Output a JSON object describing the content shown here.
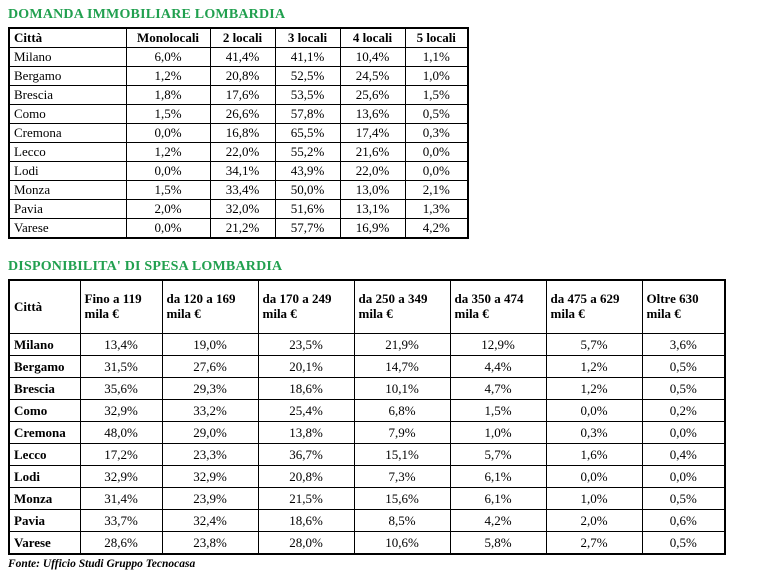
{
  "accent_color": "#21a04f",
  "source_note": "Fonte: Ufficio Studi Gruppo Tecnocasa",
  "demand_table": {
    "title": "DOMANDA IMMOBILIARE LOMBARDIA",
    "columns": [
      "Città",
      "Monolocali",
      "2 locali",
      "3 locali",
      "4 locali",
      "5 locali"
    ],
    "rows": [
      {
        "city": "Milano",
        "values": [
          "6,0%",
          "41,4%",
          "41,1%",
          "10,4%",
          "1,1%"
        ]
      },
      {
        "city": "Bergamo",
        "values": [
          "1,2%",
          "20,8%",
          "52,5%",
          "24,5%",
          "1,0%"
        ]
      },
      {
        "city": "Brescia",
        "values": [
          "1,8%",
          "17,6%",
          "53,5%",
          "25,6%",
          "1,5%"
        ]
      },
      {
        "city": "Como",
        "values": [
          "1,5%",
          "26,6%",
          "57,8%",
          "13,6%",
          "0,5%"
        ]
      },
      {
        "city": "Cremona",
        "values": [
          "0,0%",
          "16,8%",
          "65,5%",
          "17,4%",
          "0,3%"
        ]
      },
      {
        "city": "Lecco",
        "values": [
          "1,2%",
          "22,0%",
          "55,2%",
          "21,6%",
          "0,0%"
        ]
      },
      {
        "city": "Lodi",
        "values": [
          "0,0%",
          "34,1%",
          "43,9%",
          "22,0%",
          "0,0%"
        ]
      },
      {
        "city": "Monza",
        "values": [
          "1,5%",
          "33,4%",
          "50,0%",
          "13,0%",
          "2,1%"
        ]
      },
      {
        "city": "Pavia",
        "values": [
          "2,0%",
          "32,0%",
          "51,6%",
          "13,1%",
          "1,3%"
        ]
      },
      {
        "city": "Varese",
        "values": [
          "0,0%",
          "21,2%",
          "57,7%",
          "16,9%",
          "4,2%"
        ]
      }
    ]
  },
  "budget_table": {
    "title": "DISPONIBILITA' DI SPESA LOMBARDIA",
    "columns": [
      "Città",
      "Fino a 119 mila €",
      "da 120 a 169 mila €",
      "da 170 a 249 mila €",
      "da 250 a 349 mila €",
      "da 350 a 474 mila €",
      "da 475 a 629 mila €",
      "Oltre 630 mila €"
    ],
    "rows": [
      {
        "city": "Milano",
        "values": [
          "13,4%",
          "19,0%",
          "23,5%",
          "21,9%",
          "12,9%",
          "5,7%",
          "3,6%"
        ]
      },
      {
        "city": "Bergamo",
        "values": [
          "31,5%",
          "27,6%",
          "20,1%",
          "14,7%",
          "4,4%",
          "1,2%",
          "0,5%"
        ]
      },
      {
        "city": "Brescia",
        "values": [
          "35,6%",
          "29,3%",
          "18,6%",
          "10,1%",
          "4,7%",
          "1,2%",
          "0,5%"
        ]
      },
      {
        "city": "Como",
        "values": [
          "32,9%",
          "33,2%",
          "25,4%",
          "6,8%",
          "1,5%",
          "0,0%",
          "0,2%"
        ]
      },
      {
        "city": "Cremona",
        "values": [
          "48,0%",
          "29,0%",
          "13,8%",
          "7,9%",
          "1,0%",
          "0,3%",
          "0,0%"
        ]
      },
      {
        "city": "Lecco",
        "values": [
          "17,2%",
          "23,3%",
          "36,7%",
          "15,1%",
          "5,7%",
          "1,6%",
          "0,4%"
        ]
      },
      {
        "city": "Lodi",
        "values": [
          "32,9%",
          "32,9%",
          "20,8%",
          "7,3%",
          "6,1%",
          "0,0%",
          "0,0%"
        ]
      },
      {
        "city": "Monza",
        "values": [
          "31,4%",
          "23,9%",
          "21,5%",
          "15,6%",
          "6,1%",
          "1,0%",
          "0,5%"
        ]
      },
      {
        "city": "Pavia",
        "values": [
          "33,7%",
          "32,4%",
          "18,6%",
          "8,5%",
          "4,2%",
          "2,0%",
          "0,6%"
        ]
      },
      {
        "city": "Varese",
        "values": [
          "28,6%",
          "23,8%",
          "28,0%",
          "10,6%",
          "5,8%",
          "2,7%",
          "0,5%"
        ]
      }
    ]
  }
}
